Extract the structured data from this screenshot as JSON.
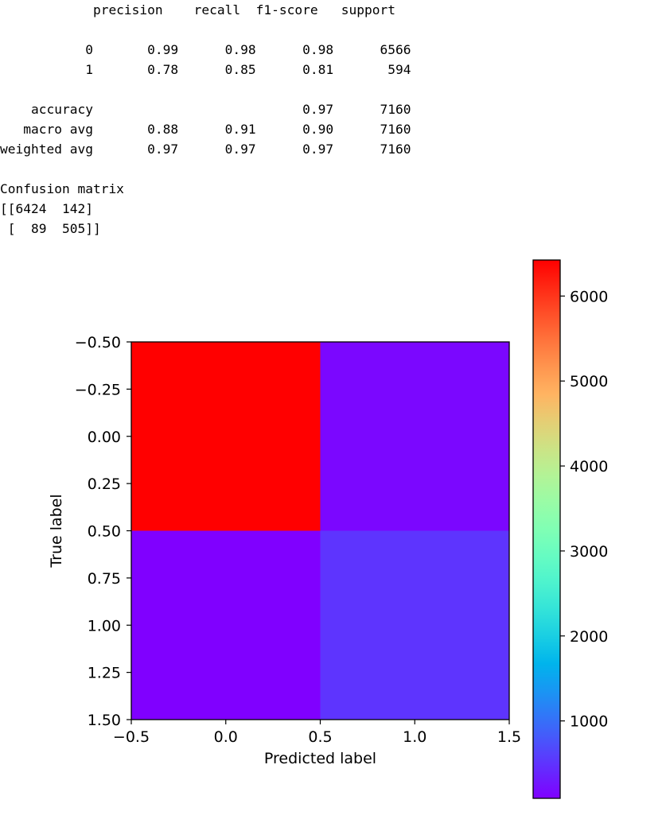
{
  "report": {
    "lines": [
      "            precision    recall  f1-score   support",
      "",
      "           0       0.99      0.98      0.98      6566",
      "           1       0.78      0.85      0.81       594",
      "",
      "    accuracy                           0.97      7160",
      "   macro avg       0.88      0.91      0.90      7160",
      "weighted avg       0.97      0.97      0.97      7160",
      "",
      "Confusion matrix",
      "[[6424  142]",
      " [  89  505]]"
    ]
  },
  "chart_data": {
    "type": "heatmap",
    "colormap": "rainbow",
    "z": [
      [
        6424,
        142
      ],
      [
        89,
        505
      ]
    ],
    "x_centers": [
      0,
      1
    ],
    "y_centers": [
      0,
      1
    ],
    "xlabel": "Predicted label",
    "ylabel": "True label",
    "xlim": [
      -0.5,
      1.5
    ],
    "ylim": [
      1.5,
      -0.5
    ],
    "x_ticks": [
      -0.5,
      0.0,
      0.5,
      1.0,
      1.5
    ],
    "x_tick_labels": [
      "−0.5",
      "0.0",
      "0.5",
      "1.0",
      "1.5"
    ],
    "y_ticks": [
      -0.5,
      -0.25,
      0.0,
      0.25,
      0.5,
      0.75,
      1.0,
      1.25,
      1.5
    ],
    "y_tick_labels": [
      "−0.50",
      "−0.25",
      "0.00",
      "0.25",
      "0.50",
      "0.75",
      "1.00",
      "1.25",
      "1.50"
    ],
    "colorbar": {
      "range": [
        89,
        6424
      ],
      "ticks": [
        1000,
        2000,
        3000,
        4000,
        5000,
        6000
      ],
      "tick_labels": [
        "1000",
        "2000",
        "3000",
        "4000",
        "5000",
        "6000"
      ]
    },
    "grid": false
  }
}
